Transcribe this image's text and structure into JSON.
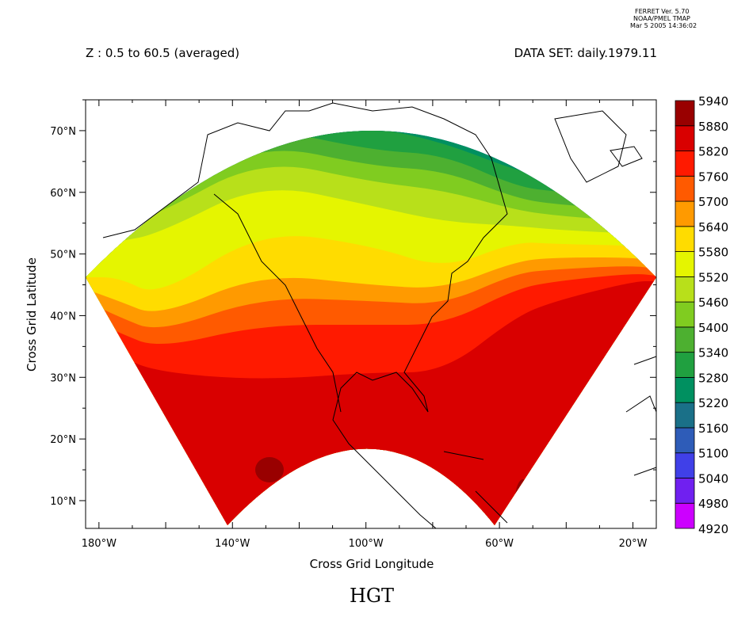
{
  "header": {
    "version": "FERRET Ver. 5.70",
    "org": "NOAA/PMEL TMAP",
    "date": "Mar  5 2005 14:36:02"
  },
  "subtitle": "Z : 0.5 to 60.5 (averaged)",
  "dataset": "DATA SET: daily.1979.11",
  "title": "HGT",
  "chart_data": {
    "type": "contour-map",
    "variable": "HGT",
    "xlabel": "Cross Grid Longitude",
    "ylabel": "Cross Grid Latitude",
    "xticks": [
      "180°W",
      "140°W",
      "100°W",
      "60°W",
      "20°W"
    ],
    "yticks": [
      "10°N",
      "20°N",
      "30°N",
      "40°N",
      "50°N",
      "60°N",
      "70°N"
    ],
    "xlim": [
      -184,
      -13
    ],
    "ylim": [
      5.5,
      75
    ],
    "colorbar": {
      "levels": [
        "4920",
        "4980",
        "5040",
        "5100",
        "5160",
        "5220",
        "5280",
        "5340",
        "5400",
        "5460",
        "5520",
        "5580",
        "5640",
        "5700",
        "5760",
        "5820",
        "5880",
        "5940"
      ],
      "colors": [
        "#cc00ff",
        "#7020f0",
        "#4040e8",
        "#2e5cb8",
        "#1a7088",
        "#009060",
        "#20a040",
        "#4db030",
        "#80cc20",
        "#b8e01a",
        "#e5f500",
        "#ffdc00",
        "#ff9a00",
        "#ff5a00",
        "#ff1a00",
        "#d90000",
        "#990000"
      ]
    }
  }
}
